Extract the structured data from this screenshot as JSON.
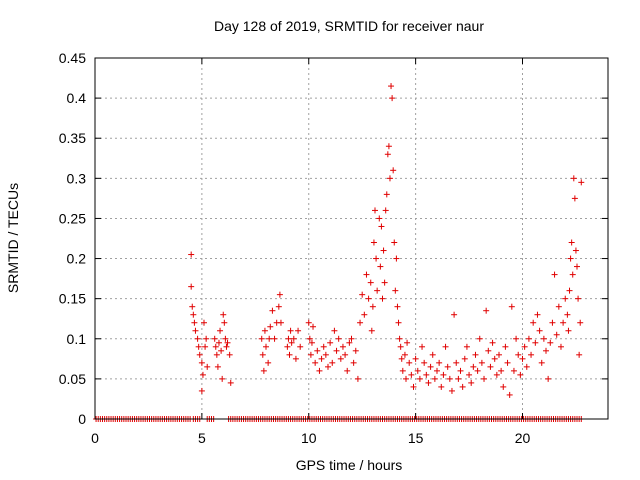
{
  "chart_data": {
    "type": "scatter",
    "title": "Day 128 of 2019, SRMTID for receiver naur",
    "xlabel": "GPS time / hours",
    "ylabel": "SRMTID / TECUs",
    "xlim": [
      0,
      24
    ],
    "ylim": [
      0,
      0.45
    ],
    "xticks": [
      0,
      5,
      10,
      15,
      20
    ],
    "xtick_labels": [
      "0",
      "5",
      "10",
      "15",
      "20"
    ],
    "yticks": [
      0,
      0.05,
      0.1,
      0.15,
      0.2,
      0.25,
      0.3,
      0.35,
      0.4,
      0.45
    ],
    "ytick_labels": [
      "0",
      "0.05",
      "0.1",
      "0.15",
      "0.2",
      "0.25",
      "0.3",
      "0.35",
      "0.4",
      "0.45"
    ],
    "grid": true,
    "marker": "plus",
    "color": "#e00000",
    "series": [
      {
        "name": "SRMTID",
        "points": [
          [
            4.5,
            0.205
          ],
          [
            4.5,
            0.165
          ],
          [
            4.55,
            0.14
          ],
          [
            4.6,
            0.13
          ],
          [
            4.65,
            0.12
          ],
          [
            4.7,
            0.11
          ],
          [
            4.8,
            0.1
          ],
          [
            4.85,
            0.09
          ],
          [
            4.9,
            0.08
          ],
          [
            5.0,
            0.07
          ],
          [
            5.0,
            0.035
          ],
          [
            5.05,
            0.055
          ],
          [
            5.1,
            0.12
          ],
          [
            5.15,
            0.09
          ],
          [
            5.2,
            0.1
          ],
          [
            5.25,
            0.065
          ],
          [
            5.6,
            0.1
          ],
          [
            5.65,
            0.09
          ],
          [
            5.7,
            0.08
          ],
          [
            5.75,
            0.065
          ],
          [
            5.8,
            0.095
          ],
          [
            5.85,
            0.11
          ],
          [
            5.9,
            0.085
          ],
          [
            5.95,
            0.05
          ],
          [
            6.0,
            0.13
          ],
          [
            6.05,
            0.12
          ],
          [
            6.1,
            0.1
          ],
          [
            6.15,
            0.09
          ],
          [
            6.2,
            0.095
          ],
          [
            6.3,
            0.08
          ],
          [
            6.35,
            0.045
          ],
          [
            7.8,
            0.1
          ],
          [
            7.85,
            0.08
          ],
          [
            7.9,
            0.06
          ],
          [
            7.95,
            0.11
          ],
          [
            8.0,
            0.09
          ],
          [
            8.1,
            0.07
          ],
          [
            8.15,
            0.1
          ],
          [
            8.2,
            0.115
          ],
          [
            8.3,
            0.135
          ],
          [
            8.4,
            0.1
          ],
          [
            8.5,
            0.12
          ],
          [
            8.6,
            0.14
          ],
          [
            8.65,
            0.155
          ],
          [
            8.7,
            0.12
          ],
          [
            9.0,
            0.09
          ],
          [
            9.05,
            0.1
          ],
          [
            9.1,
            0.08
          ],
          [
            9.15,
            0.11
          ],
          [
            9.2,
            0.095
          ],
          [
            9.3,
            0.1
          ],
          [
            9.4,
            0.075
          ],
          [
            9.5,
            0.11
          ],
          [
            9.6,
            0.09
          ],
          [
            10.0,
            0.12
          ],
          [
            10.05,
            0.1
          ],
          [
            10.1,
            0.08
          ],
          [
            10.15,
            0.095
          ],
          [
            10.2,
            0.115
          ],
          [
            10.3,
            0.07
          ],
          [
            10.4,
            0.085
          ],
          [
            10.5,
            0.06
          ],
          [
            10.6,
            0.075
          ],
          [
            10.7,
            0.09
          ],
          [
            10.8,
            0.08
          ],
          [
            10.9,
            0.065
          ],
          [
            11.0,
            0.095
          ],
          [
            11.1,
            0.07
          ],
          [
            11.2,
            0.11
          ],
          [
            11.3,
            0.085
          ],
          [
            11.4,
            0.1
          ],
          [
            11.5,
            0.075
          ],
          [
            11.6,
            0.09
          ],
          [
            11.7,
            0.08
          ],
          [
            11.8,
            0.06
          ],
          [
            11.9,
            0.095
          ],
          [
            12.0,
            0.1
          ],
          [
            12.1,
            0.07
          ],
          [
            12.2,
            0.085
          ],
          [
            12.3,
            0.05
          ],
          [
            12.4,
            0.12
          ],
          [
            12.5,
            0.155
          ],
          [
            12.6,
            0.13
          ],
          [
            12.7,
            0.18
          ],
          [
            12.8,
            0.15
          ],
          [
            12.9,
            0.17
          ],
          [
            12.95,
            0.11
          ],
          [
            13.0,
            0.14
          ],
          [
            13.05,
            0.22
          ],
          [
            13.1,
            0.26
          ],
          [
            13.15,
            0.2
          ],
          [
            13.2,
            0.16
          ],
          [
            13.3,
            0.25
          ],
          [
            13.35,
            0.19
          ],
          [
            13.4,
            0.24
          ],
          [
            13.45,
            0.15
          ],
          [
            13.5,
            0.21
          ],
          [
            13.55,
            0.17
          ],
          [
            13.6,
            0.26
          ],
          [
            13.65,
            0.28
          ],
          [
            13.7,
            0.33
          ],
          [
            13.75,
            0.34
          ],
          [
            13.8,
            0.3
          ],
          [
            13.85,
            0.415
          ],
          [
            13.9,
            0.4
          ],
          [
            13.95,
            0.31
          ],
          [
            14.0,
            0.22
          ],
          [
            14.05,
            0.16
          ],
          [
            14.1,
            0.2
          ],
          [
            14.15,
            0.14
          ],
          [
            14.2,
            0.12
          ],
          [
            14.25,
            0.1
          ],
          [
            14.3,
            0.09
          ],
          [
            14.35,
            0.075
          ],
          [
            14.4,
            0.06
          ],
          [
            14.5,
            0.08
          ],
          [
            14.55,
            0.05
          ],
          [
            14.6,
            0.095
          ],
          [
            14.7,
            0.07
          ],
          [
            14.8,
            0.055
          ],
          [
            14.9,
            0.04
          ],
          [
            15.0,
            0.075
          ],
          [
            15.1,
            0.06
          ],
          [
            15.2,
            0.05
          ],
          [
            15.3,
            0.09
          ],
          [
            15.4,
            0.07
          ],
          [
            15.5,
            0.055
          ],
          [
            15.6,
            0.045
          ],
          [
            15.7,
            0.065
          ],
          [
            15.8,
            0.08
          ],
          [
            15.9,
            0.05
          ],
          [
            16.0,
            0.06
          ],
          [
            16.1,
            0.07
          ],
          [
            16.2,
            0.04
          ],
          [
            16.3,
            0.055
          ],
          [
            16.4,
            0.09
          ],
          [
            16.5,
            0.065
          ],
          [
            16.6,
            0.05
          ],
          [
            16.7,
            0.035
          ],
          [
            16.8,
            0.13
          ],
          [
            16.9,
            0.07
          ],
          [
            17.0,
            0.05
          ],
          [
            17.1,
            0.06
          ],
          [
            17.2,
            0.04
          ],
          [
            17.3,
            0.075
          ],
          [
            17.4,
            0.09
          ],
          [
            17.5,
            0.055
          ],
          [
            17.6,
            0.045
          ],
          [
            17.7,
            0.065
          ],
          [
            17.8,
            0.08
          ],
          [
            17.9,
            0.06
          ],
          [
            18.0,
            0.1
          ],
          [
            18.1,
            0.07
          ],
          [
            18.2,
            0.05
          ],
          [
            18.3,
            0.135
          ],
          [
            18.4,
            0.085
          ],
          [
            18.5,
            0.065
          ],
          [
            18.6,
            0.095
          ],
          [
            18.7,
            0.075
          ],
          [
            18.8,
            0.055
          ],
          [
            18.9,
            0.08
          ],
          [
            19.0,
            0.06
          ],
          [
            19.1,
            0.04
          ],
          [
            19.2,
            0.09
          ],
          [
            19.3,
            0.07
          ],
          [
            19.4,
            0.03
          ],
          [
            19.5,
            0.14
          ],
          [
            19.6,
            0.06
          ],
          [
            19.7,
            0.1
          ],
          [
            19.8,
            0.08
          ],
          [
            19.9,
            0.055
          ],
          [
            20.0,
            0.075
          ],
          [
            20.1,
            0.09
          ],
          [
            20.2,
            0.065
          ],
          [
            20.3,
            0.1
          ],
          [
            20.4,
            0.08
          ],
          [
            20.5,
            0.12
          ],
          [
            20.6,
            0.095
          ],
          [
            20.7,
            0.13
          ],
          [
            20.8,
            0.11
          ],
          [
            20.9,
            0.07
          ],
          [
            21.0,
            0.1
          ],
          [
            21.1,
            0.085
          ],
          [
            21.2,
            0.05
          ],
          [
            21.3,
            0.095
          ],
          [
            21.4,
            0.12
          ],
          [
            21.5,
            0.18
          ],
          [
            21.6,
            0.105
          ],
          [
            21.7,
            0.14
          ],
          [
            21.8,
            0.09
          ],
          [
            21.9,
            0.12
          ],
          [
            22.0,
            0.15
          ],
          [
            22.1,
            0.13
          ],
          [
            22.15,
            0.11
          ],
          [
            22.2,
            0.16
          ],
          [
            22.25,
            0.2
          ],
          [
            22.3,
            0.22
          ],
          [
            22.35,
            0.18
          ],
          [
            22.4,
            0.3
          ],
          [
            22.45,
            0.275
          ],
          [
            22.5,
            0.21
          ],
          [
            22.55,
            0.19
          ],
          [
            22.6,
            0.15
          ],
          [
            22.65,
            0.08
          ],
          [
            22.7,
            0.12
          ],
          [
            22.75,
            0.295
          ]
        ],
        "zero_segments": [
          [
            0.05,
            4.45
          ],
          [
            4.6,
            4.95
          ],
          [
            5.25,
            5.55
          ],
          [
            6.25,
            7.75
          ],
          [
            7.85,
            13.05
          ],
          [
            13.15,
            22.75
          ]
        ]
      }
    ]
  }
}
